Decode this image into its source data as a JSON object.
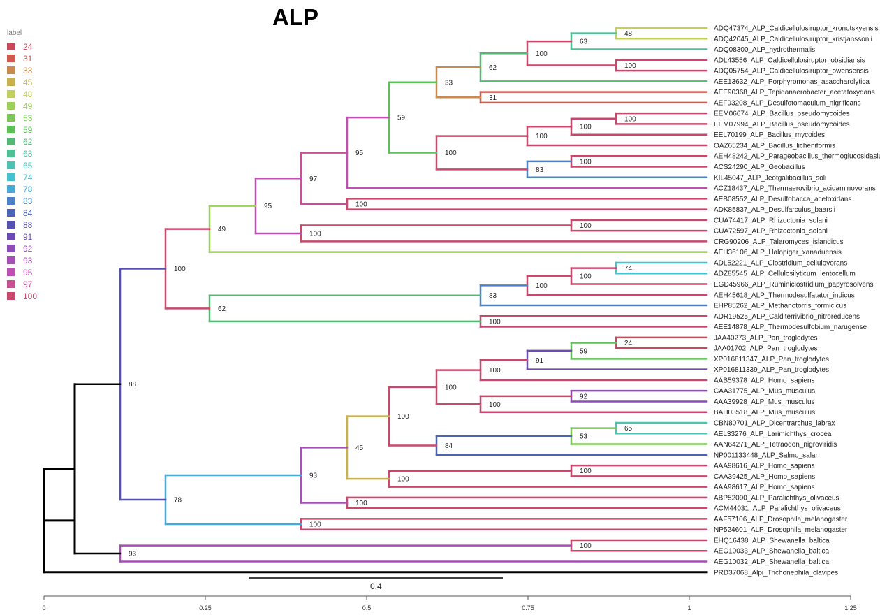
{
  "title": "ALP",
  "legend": {
    "header": "label",
    "items": [
      {
        "label": "24",
        "color": "#c8485c"
      },
      {
        "label": "31",
        "color": "#cf5b4f"
      },
      {
        "label": "33",
        "color": "#c98a4e"
      },
      {
        "label": "45",
        "color": "#c9b04e"
      },
      {
        "label": "48",
        "color": "#c2cf5e"
      },
      {
        "label": "49",
        "color": "#9ccf58"
      },
      {
        "label": "53",
        "color": "#7cc656"
      },
      {
        "label": "59",
        "color": "#5dbf55"
      },
      {
        "label": "62",
        "color": "#52b874"
      },
      {
        "label": "63",
        "color": "#4fbf96"
      },
      {
        "label": "65",
        "color": "#4cc3b5"
      },
      {
        "label": "74",
        "color": "#45c1cf"
      },
      {
        "label": "78",
        "color": "#47a9d6"
      },
      {
        "label": "83",
        "color": "#4d82c6"
      },
      {
        "label": "84",
        "color": "#4d63b8"
      },
      {
        "label": "88",
        "color": "#5550b3"
      },
      {
        "label": "91",
        "color": "#6a4cb3"
      },
      {
        "label": "92",
        "color": "#8d4db5"
      },
      {
        "label": "93",
        "color": "#a74fb7"
      },
      {
        "label": "95",
        "color": "#bd50b0"
      },
      {
        "label": "97",
        "color": "#c94f92"
      },
      {
        "label": "100",
        "color": "#c9486b"
      }
    ]
  },
  "scale_bar": {
    "label": "0.4"
  },
  "axis": {
    "ticks": [
      "0",
      "0.25",
      "0.5",
      "0.75",
      "1",
      "1.25"
    ]
  },
  "tips": [
    "ADQ47374_ALP_Caldicellulosiruptor_kronotskyensis",
    "ADQ42045_ALP_Caldicellulosiruptor_kristjanssonii",
    "ADQ08300_ALP_hydrothermalis",
    "ADL43556_ALP_Caldicellulosiruptor_obsidiansis",
    "ADQ05754_ALP_Caldicellulosiruptor_owensensis",
    "AEE13632_ALP_Porphyromonas_asaccharolytica",
    "AEE90368_ALP_Tepidanaerobacter_acetatoxydans",
    "AEF93208_ALP_Desulfotomaculum_nigrificans",
    "EEM06674_ALP_Bacillus_pseudomycoides",
    "EEM07994_ALP_Bacillus_pseudomycoides",
    "EEL70199_ALP_Bacillus_mycoides",
    "OAZ65234_ALP_Bacillus_licheniformis",
    "AEH48242_ALP_Parageobacillus_thermoglucosidasius",
    "ACS24290_ALP_Geobacillus",
    "KIL45047_ALP_Jeotgalibacillus_soli",
    "ACZ18437_ALP_Thermaerovibrio_acidaminovorans",
    "AEB08552_ALP_Desulfobacca_acetoxidans",
    "ADK85837_ALP_Desulfarculus_baarsii",
    "CUA74417_ALP_Rhizoctonia_solani",
    "CUA72597_ALP_Rhizoctonia_solani",
    "CRG90206_ALP_Talaromyces_islandicus",
    "AEH36106_ALP_Halopiger_xanaduensis",
    "ADL52221_ALP_Clostridium_cellulovorans",
    "ADZ85545_ALP_Cellulosilyticum_lentocellum",
    "EGD45966_ALP_Ruminiclostridium_papyrosolvens",
    "AEH45618_ALP_Thermodesulfatator_indicus",
    "EHP85262_ALP_Methanotorris_formicicus",
    "ADR19525_ALP_Calditerrivibrio_nitroreducens",
    "AEE14878_ALP_Thermodesulfobium_narugense",
    "JAA40273_ALP_Pan_troglodytes",
    "JAA01702_ALP_Pan_troglodytes",
    "XP016811347_ALP_Pan_troglodytes",
    "XP016811339_ALP_Pan_troglodytes",
    "AAB59378_ALP_Homo_sapiens",
    "CAA31775_ALP_Mus_musculus",
    "AAA39928_ALP_Mus_musculus",
    "BAH03518_ALP_Mus_musculus",
    "CBN80701_ALP_Dicentrarchus_labrax",
    "AEL33276_ALP_Larimichthys_crocea",
    "AAN64271_ALP_Tetraodon_nigroviridis",
    "NP001133448_ALP_Salmo_salar",
    "AAA98616_ALP_Homo_sapiens",
    "CAA39425_ALP_Homo_sapiens",
    "AAA98617_ALP_Homo_sapiens",
    "ABP52090_ALP_Paralichthys_olivaceus",
    "ACM44031_ALP_Paralichthys_olivaceus",
    "AAF57106_ALP_Drosophila_melanogaster",
    "NP524601_ALP_Drosophila_melanogaster",
    "EHQ16438_ALP_Shewanella_baltica",
    "AEG10033_ALP_Shewanella_baltica",
    "AEG10032_ALP_Shewanella_baltica",
    "PRD37068_Alpi_Trichonephila_clavipes"
  ]
}
